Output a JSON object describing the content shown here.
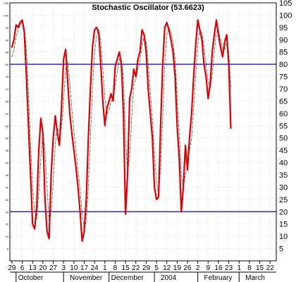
{
  "chart_data": {
    "type": "line",
    "title": "Stochastic Oscillator (53.6623)",
    "xlabel": "",
    "ylabel": "",
    "ylim": [
      0,
      105
    ],
    "grid": true,
    "y_ticks": [
      5,
      10,
      15,
      20,
      25,
      30,
      35,
      40,
      45,
      50,
      55,
      60,
      65,
      70,
      75,
      80,
      85,
      90,
      95,
      100,
      105
    ],
    "x_tick_labels": [
      "29",
      "6",
      "13",
      "20",
      "27",
      "3",
      "10",
      "17",
      "24",
      "1",
      "8",
      "15",
      "22",
      "29",
      "5",
      "12",
      "19",
      "26",
      "2",
      "9",
      "16",
      "23",
      "1",
      "8",
      "15",
      "22"
    ],
    "x_tick_positions": [
      0,
      5,
      10,
      15,
      20,
      25,
      30,
      35,
      40,
      45,
      50,
      55,
      60,
      65,
      70,
      75,
      80,
      85,
      90,
      95,
      100,
      105,
      110,
      115,
      120,
      125
    ],
    "x_range": [
      -1,
      128
    ],
    "month_labels": [
      {
        "label": "October",
        "x": 2
      },
      {
        "label": "November",
        "x": 27
      },
      {
        "label": "December",
        "x": 47
      },
      {
        "label": "2004",
        "x": 71
      },
      {
        "label": "February",
        "x": 92
      },
      {
        "label": "March",
        "x": 112
      }
    ],
    "month_dividers": [
      2,
      25,
      47,
      69,
      90,
      110
    ],
    "reference_lines": [
      {
        "value": 80,
        "color": "#0000cc"
      },
      {
        "value": 20,
        "color": "#0000cc"
      }
    ],
    "series": [
      {
        "color": "#dd0000",
        "style": "solid",
        "points": [
          [
            0,
            87
          ],
          [
            1,
            90
          ],
          [
            2,
            96
          ],
          [
            3,
            95
          ],
          [
            4,
            97
          ],
          [
            5,
            98
          ],
          [
            6,
            93
          ],
          [
            7,
            75
          ],
          [
            8,
            55
          ],
          [
            9,
            35
          ],
          [
            10,
            15
          ],
          [
            11,
            13
          ],
          [
            12,
            22
          ],
          [
            13,
            45
          ],
          [
            14,
            58
          ],
          [
            15,
            52
          ],
          [
            16,
            25
          ],
          [
            17,
            12
          ],
          [
            18,
            9
          ],
          [
            19,
            35
          ],
          [
            20,
            50
          ],
          [
            21,
            59
          ],
          [
            22,
            52
          ],
          [
            23,
            47
          ],
          [
            24,
            62
          ],
          [
            25,
            82
          ],
          [
            26,
            86
          ],
          [
            27,
            73
          ],
          [
            28,
            60
          ],
          [
            29,
            52
          ],
          [
            30,
            45
          ],
          [
            31,
            38
          ],
          [
            32,
            30
          ],
          [
            33,
            20
          ],
          [
            34,
            8
          ],
          [
            35,
            12
          ],
          [
            36,
            25
          ],
          [
            37,
            50
          ],
          [
            38,
            70
          ],
          [
            39,
            87
          ],
          [
            40,
            94
          ],
          [
            41,
            95
          ],
          [
            42,
            93
          ],
          [
            43,
            80
          ],
          [
            44,
            65
          ],
          [
            45,
            55
          ],
          [
            46,
            62
          ],
          [
            47,
            65
          ],
          [
            48,
            68
          ],
          [
            49,
            65
          ],
          [
            50,
            79
          ],
          [
            51,
            82
          ],
          [
            52,
            85
          ],
          [
            53,
            80
          ],
          [
            54,
            60
          ],
          [
            55,
            19
          ],
          [
            56,
            35
          ],
          [
            57,
            66
          ],
          [
            58,
            70
          ],
          [
            59,
            78
          ],
          [
            60,
            75
          ],
          [
            61,
            82
          ],
          [
            62,
            85
          ],
          [
            63,
            94
          ],
          [
            64,
            92
          ],
          [
            65,
            85
          ],
          [
            66,
            70
          ],
          [
            67,
            60
          ],
          [
            68,
            50
          ],
          [
            69,
            30
          ],
          [
            70,
            25
          ],
          [
            71,
            26
          ],
          [
            72,
            55
          ],
          [
            73,
            80
          ],
          [
            74,
            95
          ],
          [
            75,
            97
          ],
          [
            76,
            94
          ],
          [
            77,
            90
          ],
          [
            78,
            85
          ],
          [
            79,
            75
          ],
          [
            80,
            55
          ],
          [
            81,
            42
          ],
          [
            82,
            20
          ],
          [
            83,
            30
          ],
          [
            84,
            47
          ],
          [
            85,
            37
          ],
          [
            86,
            50
          ],
          [
            87,
            60
          ],
          [
            88,
            75
          ],
          [
            89,
            88
          ],
          [
            90,
            98
          ],
          [
            91,
            94
          ],
          [
            92,
            90
          ],
          [
            93,
            80
          ],
          [
            94,
            75
          ],
          [
            95,
            66
          ],
          [
            96,
            72
          ],
          [
            97,
            85
          ],
          [
            98,
            92
          ],
          [
            99,
            98
          ],
          [
            100,
            92
          ],
          [
            101,
            87
          ],
          [
            102,
            83
          ],
          [
            103,
            89
          ],
          [
            104,
            92
          ],
          [
            105,
            80
          ],
          [
            106,
            54
          ]
        ]
      },
      {
        "color": "#555555",
        "style": "dashed",
        "points": [
          [
            0,
            83
          ],
          [
            1,
            86
          ],
          [
            2,
            91
          ],
          [
            3,
            94
          ],
          [
            4,
            96
          ],
          [
            5,
            97
          ],
          [
            6,
            95
          ],
          [
            7,
            86
          ],
          [
            8,
            68
          ],
          [
            9,
            48
          ],
          [
            10,
            30
          ],
          [
            11,
            20
          ],
          [
            12,
            17
          ],
          [
            13,
            28
          ],
          [
            14,
            42
          ],
          [
            15,
            52
          ],
          [
            16,
            45
          ],
          [
            17,
            30
          ],
          [
            18,
            16
          ],
          [
            19,
            20
          ],
          [
            20,
            32
          ],
          [
            21,
            48
          ],
          [
            22,
            54
          ],
          [
            23,
            52
          ],
          [
            24,
            54
          ],
          [
            25,
            65
          ],
          [
            26,
            78
          ],
          [
            27,
            81
          ],
          [
            28,
            73
          ],
          [
            29,
            62
          ],
          [
            30,
            53
          ],
          [
            31,
            45
          ],
          [
            32,
            37
          ],
          [
            33,
            29
          ],
          [
            34,
            19
          ],
          [
            35,
            13
          ],
          [
            36,
            16
          ],
          [
            37,
            30
          ],
          [
            38,
            50
          ],
          [
            39,
            70
          ],
          [
            40,
            84
          ],
          [
            41,
            92
          ],
          [
            42,
            94
          ],
          [
            43,
            89
          ],
          [
            44,
            78
          ],
          [
            45,
            66
          ],
          [
            46,
            60
          ],
          [
            47,
            61
          ],
          [
            48,
            65
          ],
          [
            49,
            66
          ],
          [
            50,
            71
          ],
          [
            51,
            77
          ],
          [
            52,
            82
          ],
          [
            53,
            82
          ],
          [
            54,
            74
          ],
          [
            55,
            50
          ],
          [
            56,
            36
          ],
          [
            57,
            42
          ],
          [
            58,
            58
          ],
          [
            59,
            72
          ],
          [
            60,
            74
          ],
          [
            61,
            78
          ],
          [
            62,
            81
          ],
          [
            63,
            88
          ],
          [
            64,
            91
          ],
          [
            65,
            89
          ],
          [
            66,
            80
          ],
          [
            67,
            69
          ],
          [
            68,
            58
          ],
          [
            69,
            44
          ],
          [
            70,
            32
          ],
          [
            71,
            27
          ],
          [
            72,
            38
          ],
          [
            73,
            58
          ],
          [
            74,
            80
          ],
          [
            75,
            92
          ],
          [
            76,
            95
          ],
          [
            77,
            93
          ],
          [
            78,
            89
          ],
          [
            79,
            82
          ],
          [
            80,
            67
          ],
          [
            81,
            52
          ],
          [
            82,
            35
          ],
          [
            83,
            30
          ],
          [
            84,
            35
          ],
          [
            85,
            38
          ],
          [
            86,
            45
          ],
          [
            87,
            50
          ],
          [
            88,
            62
          ],
          [
            89,
            76
          ],
          [
            90,
            88
          ],
          [
            91,
            94
          ],
          [
            92,
            93
          ],
          [
            93,
            87
          ],
          [
            94,
            80
          ],
          [
            95,
            73
          ],
          [
            96,
            70
          ],
          [
            97,
            76
          ],
          [
            98,
            85
          ],
          [
            99,
            93
          ],
          [
            100,
            94
          ],
          [
            101,
            90
          ],
          [
            102,
            86
          ],
          [
            103,
            86
          ],
          [
            104,
            89
          ],
          [
            105,
            85
          ],
          [
            106,
            70
          ]
        ]
      }
    ]
  }
}
